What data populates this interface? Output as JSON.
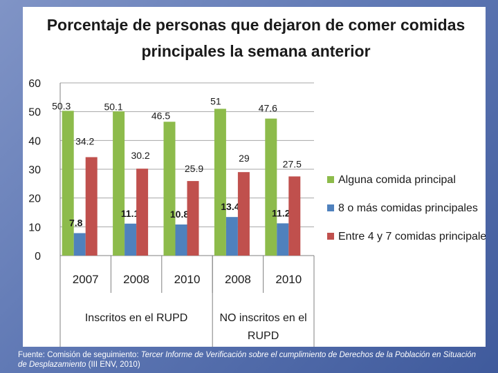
{
  "source": {
    "prefix": "Fuente: Comisión de seguimiento: ",
    "italic": "Tercer Informe de Verificación sobre el cumplimiento de Derechos de la Población en Situación de Desplazamiento",
    "suffix": " (III ENV, 2010)"
  },
  "chart_data": {
    "type": "bar",
    "title_lines": [
      "Porcentaje de personas que dejaron de comer comidas",
      "principales la semana anterior"
    ],
    "categories": [
      "2007",
      "2008",
      "2010",
      "2008",
      "2010"
    ],
    "groups": [
      {
        "label_lines": [
          "Inscritos en el RUPD"
        ],
        "count": 3
      },
      {
        "label_lines": [
          "NO inscritos en el",
          "RUPD"
        ],
        "count": 2
      }
    ],
    "ylim": [
      0,
      60
    ],
    "yticks": [
      0,
      10,
      20,
      30,
      40,
      50,
      60
    ],
    "grid": true,
    "legend_position": "right",
    "series": [
      {
        "name": "Alguna comida principal",
        "color": "#8dbb4b",
        "values": [
          50.3,
          50.1,
          46.5,
          51,
          47.6
        ],
        "labels": [
          "50.3",
          "50.1",
          "46.5",
          "51",
          "47.6"
        ]
      },
      {
        "name": "8 o más comidas principales",
        "color": "#4f81bd",
        "values": [
          7.8,
          11.1,
          10.8,
          13.4,
          11.2
        ],
        "labels": [
          "7.8",
          "11.1",
          "10.8",
          "13.4",
          "11.2"
        ]
      },
      {
        "name": "Entre 4 y 7 comidas principales",
        "color": "#c0504d",
        "values": [
          34.2,
          30.2,
          25.9,
          29,
          27.5
        ],
        "labels": [
          "34.2",
          "30.2",
          "25.9",
          "29",
          "27.5"
        ]
      }
    ]
  }
}
